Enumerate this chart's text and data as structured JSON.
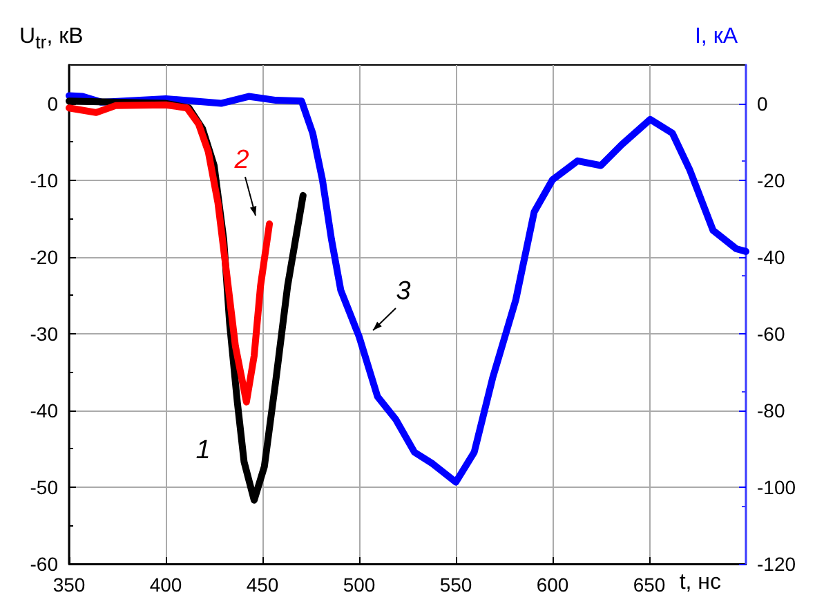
{
  "chart_data": {
    "type": "line",
    "xlabel": "t, нс",
    "ylabel": "U$_{tr}$, кВ",
    "y2label": "I, кА",
    "xlim": [
      350,
      700
    ],
    "xticks": [
      350,
      400,
      450,
      500,
      550,
      600,
      650
    ],
    "ylim": [
      -60,
      5
    ],
    "yticks": [
      -60,
      -50,
      -40,
      -30,
      -20,
      -10,
      0
    ],
    "y2lim": [
      -120,
      10
    ],
    "y2ticks": [
      -120,
      -100,
      -80,
      -60,
      -40,
      -20,
      0
    ],
    "grid": true,
    "marker": "none",
    "line_style": "solid",
    "series": [
      {
        "color": "#000000",
        "x": [
          350,
          400,
          412,
          419,
          425,
          430,
          433,
          437,
          440.5,
          445.7,
          451,
          457,
          463,
          471
        ],
        "values": [
          0.3,
          0,
          -0.6,
          -3.3,
          -8.1,
          -17.8,
          -28.6,
          -38.9,
          -46.7,
          -51.7,
          -47.3,
          -35.9,
          -23.8,
          -12
        ]
      },
      {
        "color": "#ff0000",
        "x": [
          350,
          364,
          374,
          400,
          411,
          417,
          422,
          427,
          431.4,
          436,
          441.7,
          445.7,
          449,
          453.6
        ],
        "values": [
          -0.6,
          -1.2,
          -0.3,
          -0.2,
          -0.6,
          -2.7,
          -6.3,
          -13,
          -22,
          -31.6,
          -38.9,
          -32.9,
          -23.8,
          -15.7
        ]
      },
      {
        "color": "#0000ff",
        "axis": "y2",
        "x": [
          350,
          357,
          366.7,
          400,
          428.6,
          442.9,
          457,
          470.2,
          476,
          481,
          485.7,
          490.5,
          500,
          509.5,
          519,
          528.6,
          538,
          550,
          559.5,
          569,
          581,
          590.5,
          600,
          613,
          625,
          635.7,
          650.5,
          662,
          671,
          683,
          695,
          700
        ],
        "values": [
          2,
          1.8,
          0.3,
          1.2,
          0,
          1.8,
          0.8,
          0.6,
          -7.8,
          -19.9,
          -35.5,
          -48.7,
          -60.8,
          -76.4,
          -82.4,
          -90.9,
          -93.9,
          -98.7,
          -90.9,
          -71.6,
          -51.2,
          -28.3,
          -19.9,
          -15,
          -16.2,
          -10.8,
          -4.2,
          -7.8,
          -17.4,
          -33.1,
          -37.9,
          -38.6
        ]
      }
    ],
    "annotations": [
      "1",
      "2",
      "3"
    ]
  }
}
